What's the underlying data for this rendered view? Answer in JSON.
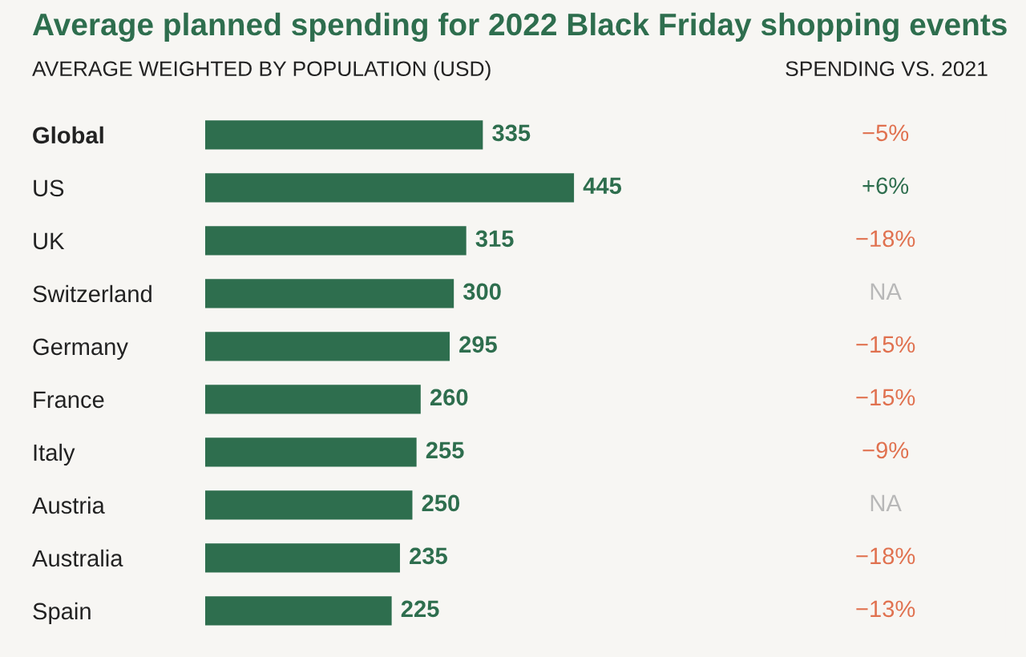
{
  "chart_data": {
    "type": "bar",
    "orientation": "horizontal",
    "title": "Average planned spending for 2022 Black Friday shopping events",
    "subtitle": "AVERAGE WEIGHTED BY POPULATION (USD)",
    "categories": [
      "Global",
      "US",
      "UK",
      "Switzerland",
      "Germany",
      "France",
      "Italy",
      "Austria",
      "Australia",
      "Spain"
    ],
    "values": [
      335,
      445,
      315,
      300,
      295,
      260,
      255,
      250,
      235,
      225
    ],
    "color": "#2e6e4e",
    "data_labels": true,
    "grid": false,
    "legend": false,
    "tick_labels": "y",
    "annotations": [
      "SPENDING VS. 2021",
      "−5%",
      "+6%",
      "−18%",
      "NA",
      "−15%",
      "−15%",
      "−9%",
      "NA",
      "−18%",
      "−13%"
    ]
  }
}
